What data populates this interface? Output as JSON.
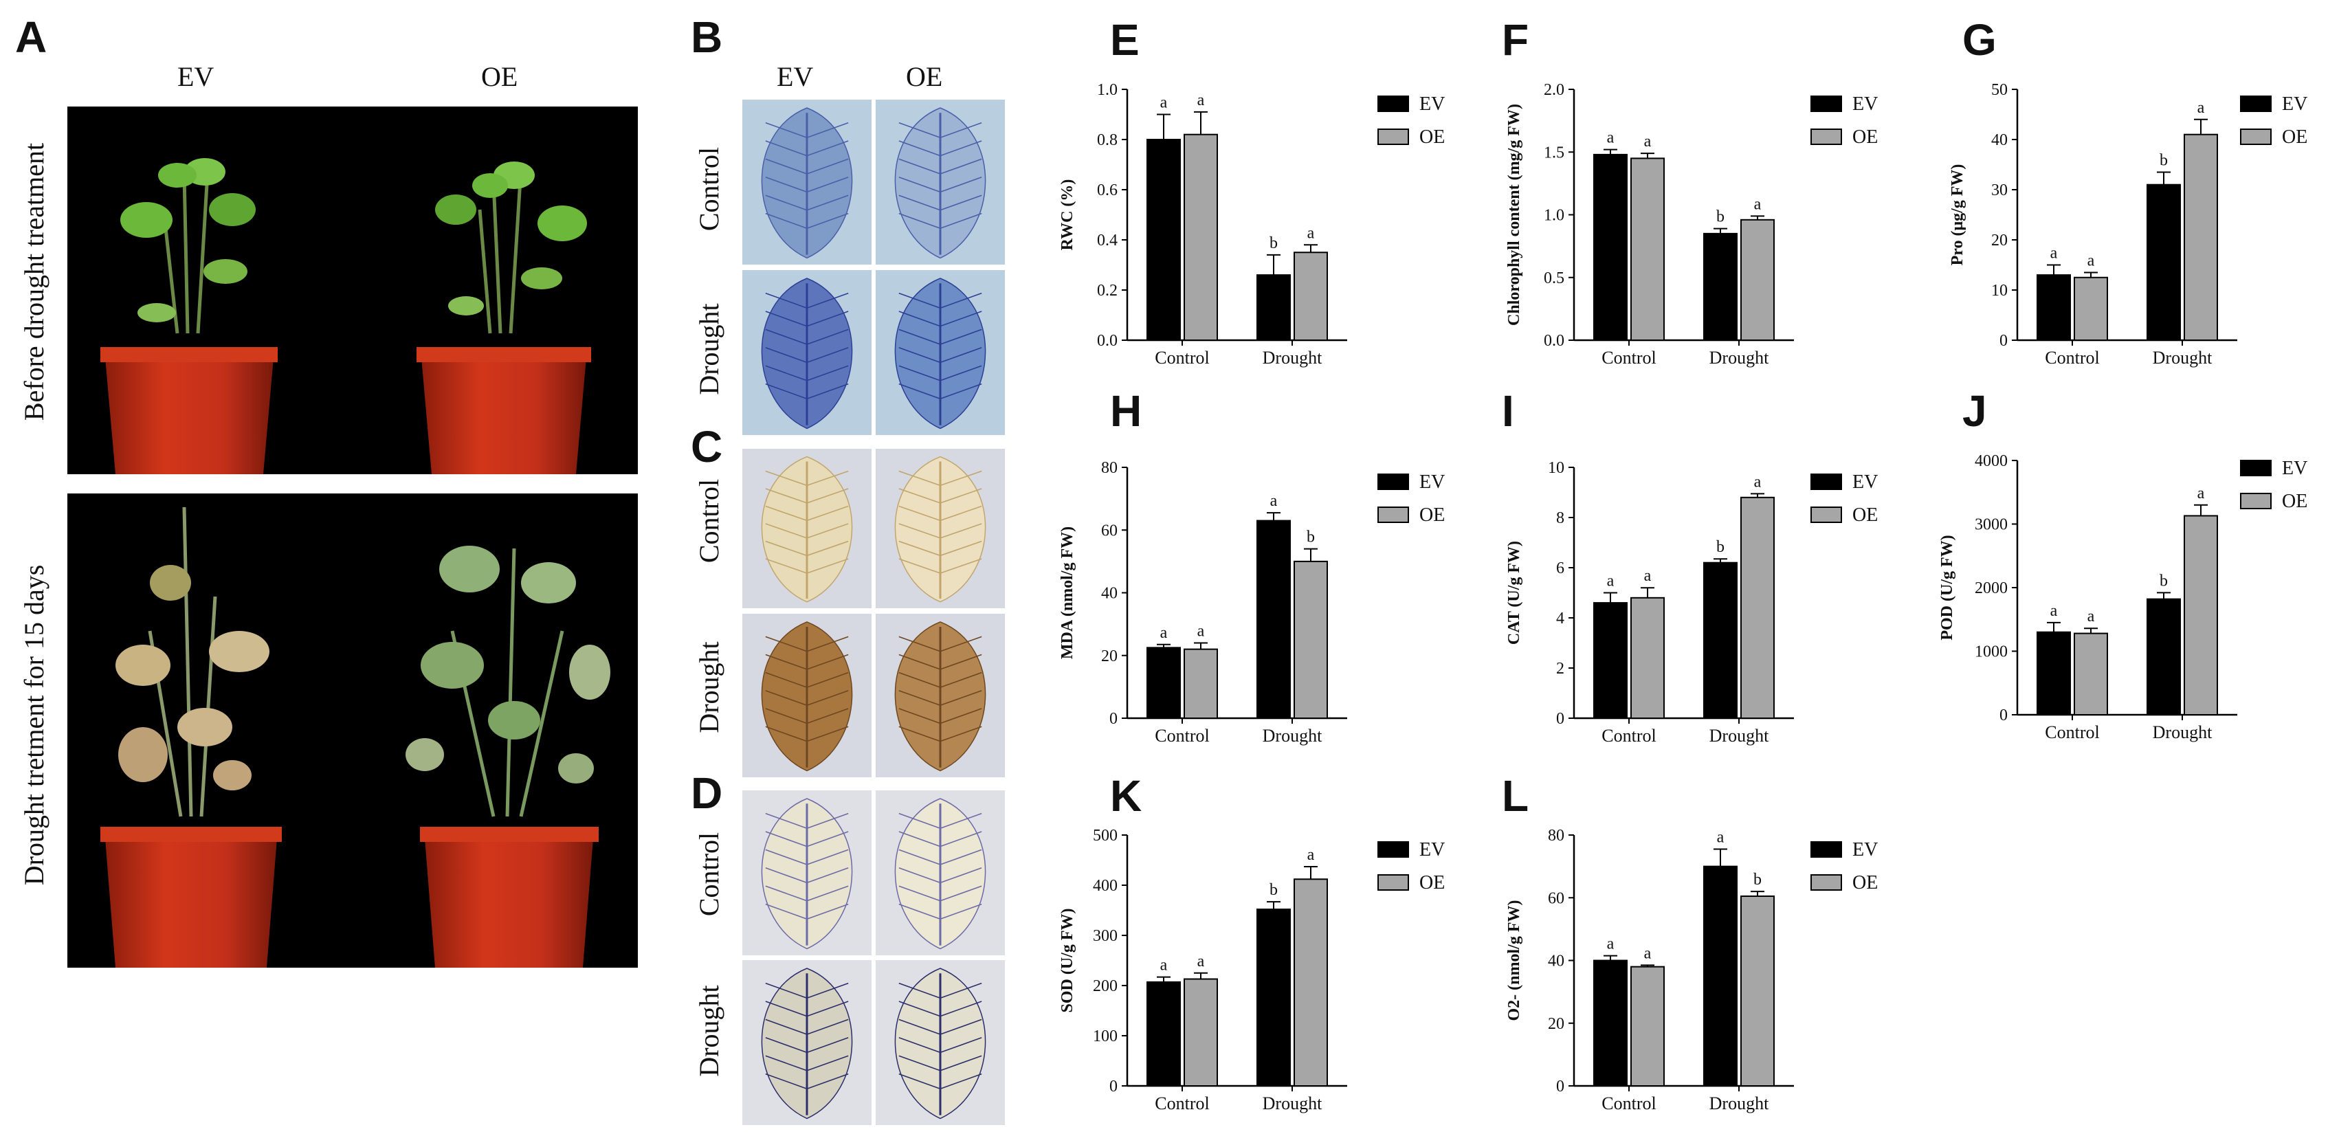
{
  "panel_labels": {
    "A": "A",
    "B": "B",
    "C": "C",
    "D": "D"
  },
  "photo_panel": {
    "col_labels": [
      "EV",
      "OE"
    ],
    "row_labels": [
      "Before drought treatment",
      "Drought tretment for 15 days"
    ]
  },
  "staining_panel": {
    "col_labels": [
      "EV",
      "OE"
    ],
    "row_labels": [
      "Control",
      "Drought"
    ]
  },
  "colors": {
    "EV": "#000000",
    "OE": "#a6a6a6",
    "pot": "#c8321a"
  },
  "chart_data": [
    {
      "id": "E",
      "panel_label": "E",
      "type": "bar",
      "ylabel": "RWC (%)",
      "categories": [
        "Control",
        "Drought"
      ],
      "ylim": [
        0,
        1.0
      ],
      "yticks": [
        "0.0",
        "0.2",
        "0.4",
        "0.6",
        "0.8",
        "1.0"
      ],
      "series": [
        {
          "name": "EV",
          "values": [
            0.8,
            0.26
          ],
          "errors": [
            0.1,
            0.08
          ],
          "letters": [
            "a",
            "b"
          ]
        },
        {
          "name": "OE",
          "values": [
            0.82,
            0.35
          ],
          "errors": [
            0.09,
            0.03
          ],
          "letters": [
            "a",
            "a"
          ]
        }
      ]
    },
    {
      "id": "F",
      "panel_label": "F",
      "type": "bar",
      "ylabel": "Chlorophyll content (mg/g FW)",
      "categories": [
        "Control",
        "Drought"
      ],
      "ylim": [
        0,
        2.0
      ],
      "yticks": [
        "0.0",
        "0.5",
        "1.0",
        "1.5",
        "2.0"
      ],
      "series": [
        {
          "name": "EV",
          "values": [
            1.48,
            0.85
          ],
          "errors": [
            0.04,
            0.04
          ],
          "letters": [
            "a",
            "b"
          ]
        },
        {
          "name": "OE",
          "values": [
            1.45,
            0.96
          ],
          "errors": [
            0.04,
            0.03
          ],
          "letters": [
            "a",
            "a"
          ]
        }
      ]
    },
    {
      "id": "G",
      "panel_label": "G",
      "type": "bar",
      "ylabel": "Pro (μg/g FW)",
      "categories": [
        "Control",
        "Drought"
      ],
      "ylim": [
        0,
        50
      ],
      "yticks": [
        "0",
        "10",
        "20",
        "30",
        "40",
        "50"
      ],
      "series": [
        {
          "name": "EV",
          "values": [
            13,
            31
          ],
          "errors": [
            2,
            2.5
          ],
          "letters": [
            "a",
            "b"
          ]
        },
        {
          "name": "OE",
          "values": [
            12.5,
            41
          ],
          "errors": [
            1,
            3
          ],
          "letters": [
            "a",
            "a"
          ]
        }
      ]
    },
    {
      "id": "H",
      "panel_label": "H",
      "type": "bar",
      "ylabel": "MDA (nmol/g FW)",
      "categories": [
        "Control",
        "Drought"
      ],
      "ylim": [
        0,
        80
      ],
      "yticks": [
        "0",
        "20",
        "40",
        "60",
        "80"
      ],
      "series": [
        {
          "name": "EV",
          "values": [
            22.5,
            63
          ],
          "errors": [
            1,
            2.5
          ],
          "letters": [
            "a",
            "a"
          ]
        },
        {
          "name": "OE",
          "values": [
            22,
            50
          ],
          "errors": [
            2,
            4
          ],
          "letters": [
            "a",
            "b"
          ]
        }
      ]
    },
    {
      "id": "I",
      "panel_label": "I",
      "type": "bar",
      "ylabel": "CAT (U/g FW)",
      "categories": [
        "Control",
        "Drought"
      ],
      "ylim": [
        0,
        10
      ],
      "yticks": [
        "0",
        "2",
        "4",
        "6",
        "8",
        "10"
      ],
      "series": [
        {
          "name": "EV",
          "values": [
            4.6,
            6.2
          ],
          "errors": [
            0.4,
            0.15
          ],
          "letters": [
            "a",
            "b"
          ]
        },
        {
          "name": "OE",
          "values": [
            4.8,
            8.8
          ],
          "errors": [
            0.4,
            0.15
          ],
          "letters": [
            "a",
            "a"
          ]
        }
      ]
    },
    {
      "id": "J",
      "panel_label": "J",
      "type": "bar",
      "ylabel": "POD (U/g FW)",
      "categories": [
        "Control",
        "Drought"
      ],
      "ylim": [
        0,
        4000
      ],
      "yticks": [
        "0",
        "1000",
        "2000",
        "3000",
        "4000"
      ],
      "series": [
        {
          "name": "EV",
          "values": [
            1300,
            1820
          ],
          "errors": [
            150,
            100
          ],
          "letters": [
            "a",
            "b"
          ]
        },
        {
          "name": "OE",
          "values": [
            1280,
            3130
          ],
          "errors": [
            80,
            170
          ],
          "letters": [
            "a",
            "a"
          ]
        }
      ]
    },
    {
      "id": "K",
      "panel_label": "K",
      "type": "bar",
      "ylabel": "SOD (U/g FW)",
      "categories": [
        "Control",
        "Drought"
      ],
      "ylim": [
        0,
        500
      ],
      "yticks": [
        "0",
        "100",
        "200",
        "300",
        "400",
        "500"
      ],
      "series": [
        {
          "name": "EV",
          "values": [
            207,
            352
          ],
          "errors": [
            10,
            15
          ],
          "letters": [
            "a",
            "b"
          ]
        },
        {
          "name": "OE",
          "values": [
            213,
            412
          ],
          "errors": [
            12,
            25
          ],
          "letters": [
            "a",
            "a"
          ]
        }
      ]
    },
    {
      "id": "L",
      "panel_label": "L",
      "type": "bar",
      "ylabel": "O2- (nmol/g FW)",
      "categories": [
        "Control",
        "Drought"
      ],
      "ylim": [
        0,
        80
      ],
      "yticks": [
        "0",
        "20",
        "40",
        "60",
        "80"
      ],
      "series": [
        {
          "name": "EV",
          "values": [
            40,
            70
          ],
          "errors": [
            1.5,
            5.5
          ],
          "letters": [
            "a",
            "a"
          ]
        },
        {
          "name": "OE",
          "values": [
            38,
            60.5
          ],
          "errors": [
            0.5,
            1.5
          ],
          "letters": [
            "a",
            "b"
          ]
        }
      ]
    }
  ]
}
